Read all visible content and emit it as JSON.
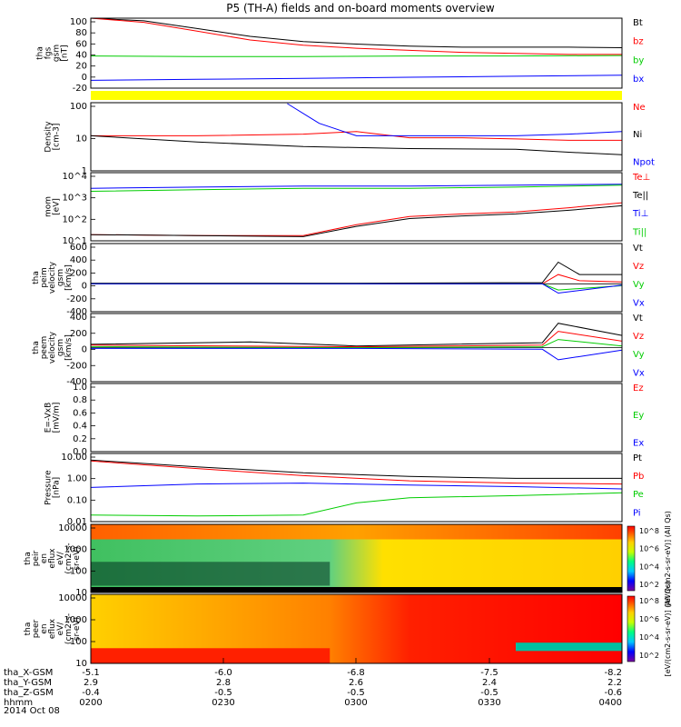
{
  "title": "P5 (TH-A) fields and on-board moments overview",
  "date": "2014 Oct 08",
  "colors": {
    "black": "#000000",
    "red": "#ff0000",
    "green": "#00cc00",
    "blue": "#0000ff",
    "yellow": "#ffff00"
  },
  "chart_data": [
    {
      "id": "fgs",
      "type": "line",
      "ylabel": [
        "tha",
        "fgs",
        "gsm",
        "[nT]"
      ],
      "yticks": [
        "100",
        "80",
        "60",
        "40",
        "20",
        "0",
        "-20"
      ],
      "ylim": [
        -35,
        100
      ],
      "series": [
        {
          "name": "Bt",
          "color": "#000000",
          "x": [
            0,
            0.1,
            0.2,
            0.3,
            0.4,
            0.5,
            0.6,
            0.7,
            0.8,
            0.9,
            1.0
          ],
          "y": [
            105,
            95,
            80,
            65,
            55,
            50,
            46,
            44,
            44,
            44,
            43
          ]
        },
        {
          "name": "bz",
          "color": "#ff0000",
          "x": [
            0,
            0.1,
            0.2,
            0.3,
            0.4,
            0.5,
            0.6,
            0.7,
            0.8,
            0.9,
            1.0
          ],
          "y": [
            103,
            92,
            75,
            58,
            48,
            42,
            38,
            34,
            32,
            30,
            30
          ]
        },
        {
          "name": "by",
          "color": "#00cc00",
          "x": [
            0,
            0.2,
            0.4,
            0.6,
            0.8,
            1.0
          ],
          "y": [
            27,
            26,
            26,
            27,
            27,
            28
          ]
        },
        {
          "name": "bx",
          "color": "#0000ff",
          "x": [
            0,
            0.2,
            0.4,
            0.6,
            0.8,
            1.0
          ],
          "y": [
            -20,
            -18,
            -16,
            -14,
            -12,
            -10
          ]
        }
      ]
    },
    {
      "id": "density",
      "type": "line",
      "ylabel": [
        "Density",
        "[cm-3]"
      ],
      "yticks": [
        "100",
        "10",
        "1"
      ],
      "log": true,
      "ylim": [
        0.1,
        200
      ],
      "series": [
        {
          "name": "Ne",
          "color": "#ff0000",
          "x": [
            0,
            0.2,
            0.4,
            0.5,
            0.6,
            0.7,
            0.8,
            0.9,
            1.0
          ],
          "y": [
            5,
            5,
            6,
            8,
            4,
            4,
            3.5,
            3,
            3
          ]
        },
        {
          "name": "Ni",
          "color": "#000000",
          "x": [
            0,
            0.2,
            0.4,
            0.6,
            0.8,
            0.9,
            1.0
          ],
          "y": [
            5,
            2.5,
            1.5,
            1.2,
            1.1,
            0.8,
            0.6
          ]
        },
        {
          "name": "Npot",
          "color": "#0000ff",
          "x": [
            0.37,
            0.43,
            0.5,
            0.6,
            0.8,
            0.9,
            1.0
          ],
          "y": [
            180,
            20,
            5,
            5,
            5,
            6,
            8
          ]
        }
      ]
    },
    {
      "id": "temp",
      "type": "line",
      "ylabel": [
        "mom",
        "[eV]"
      ],
      "yticks": [
        "10^4",
        "10^3",
        "10^2",
        "10^1"
      ],
      "log": true,
      "ylim": [
        10,
        20000
      ],
      "series": [
        {
          "name": "Te⊥",
          "color": "#ff0000",
          "x": [
            0,
            0.2,
            0.4,
            0.5,
            0.6,
            0.7,
            0.8,
            0.9,
            1.0
          ],
          "y": [
            20,
            18,
            18,
            60,
            150,
            200,
            250,
            400,
            700
          ]
        },
        {
          "name": "Te||",
          "color": "#000000",
          "x": [
            0,
            0.2,
            0.4,
            0.5,
            0.6,
            0.7,
            0.8,
            0.9,
            1.0
          ],
          "y": [
            20,
            18,
            16,
            50,
            120,
            160,
            200,
            300,
            500
          ]
        },
        {
          "name": "Ti⊥",
          "color": "#0000ff",
          "x": [
            0,
            0.2,
            0.4,
            0.6,
            0.8,
            1.0
          ],
          "y": [
            3500,
            4000,
            4500,
            4500,
            5000,
            5500
          ]
        },
        {
          "name": "Ti||",
          "color": "#00cc00",
          "x": [
            0,
            0.2,
            0.4,
            0.6,
            0.8,
            1.0
          ],
          "y": [
            2500,
            3000,
            3500,
            3500,
            4000,
            5000
          ]
        }
      ]
    },
    {
      "id": "peim",
      "type": "line",
      "ylabel": [
        "tha",
        "peim",
        "velocity",
        "gsm",
        "[km/s]"
      ],
      "yticks": [
        "600",
        "400",
        "200",
        "0",
        "-200",
        "-400"
      ],
      "ylim": [
        -450,
        650
      ],
      "series": [
        {
          "name": "Vt",
          "color": "#000000",
          "x": [
            0,
            0.5,
            0.85,
            0.88,
            0.92,
            1.0
          ],
          "y": [
            10,
            10,
            20,
            350,
            150,
            150
          ]
        },
        {
          "name": "Vz",
          "color": "#ff0000",
          "x": [
            0,
            0.5,
            0.85,
            0.88,
            0.92,
            1.0
          ],
          "y": [
            0,
            0,
            0,
            150,
            50,
            30
          ]
        },
        {
          "name": "Vy",
          "color": "#00cc00",
          "x": [
            0,
            0.5,
            0.85,
            0.88,
            1.0
          ],
          "y": [
            0,
            0,
            0,
            -100,
            -30
          ]
        },
        {
          "name": "Vx",
          "color": "#0000ff",
          "x": [
            0,
            0.5,
            0.85,
            0.88,
            1.0
          ],
          "y": [
            0,
            0,
            0,
            -150,
            -20
          ]
        }
      ]
    },
    {
      "id": "peem",
      "type": "line",
      "ylabel": [
        "tha",
        "peem",
        "velocity",
        "gsm",
        "[km/s]"
      ],
      "yticks": [
        "400",
        "200",
        "0",
        "-200",
        "-400"
      ],
      "ylim": [
        -420,
        420
      ],
      "series": [
        {
          "name": "Vt",
          "color": "#000000",
          "x": [
            0,
            0.3,
            0.5,
            0.85,
            0.88,
            1.0
          ],
          "y": [
            40,
            70,
            20,
            60,
            300,
            150
          ]
        },
        {
          "name": "Vz",
          "color": "#ff0000",
          "x": [
            0,
            0.5,
            0.85,
            0.88,
            1.0
          ],
          "y": [
            30,
            10,
            30,
            200,
            80
          ]
        },
        {
          "name": "Vy",
          "color": "#00cc00",
          "x": [
            0,
            0.5,
            0.85,
            0.88,
            1.0
          ],
          "y": [
            10,
            0,
            10,
            100,
            20
          ]
        },
        {
          "name": "Vx",
          "color": "#0000ff",
          "x": [
            0,
            0.5,
            0.85,
            0.88,
            1.0
          ],
          "y": [
            -10,
            -10,
            -20,
            -150,
            -30
          ]
        }
      ]
    },
    {
      "id": "efield",
      "type": "line",
      "ylabel": [
        "E=-VxB",
        "[mV/m]"
      ],
      "yticks": [
        "1.0",
        "0.8",
        "0.6",
        "0.4",
        "0.2",
        "0.0"
      ],
      "ylim": [
        0,
        1
      ],
      "series": [
        {
          "name": "Ez",
          "color": "#ff0000",
          "x": [],
          "y": []
        },
        {
          "name": "Ey",
          "color": "#00cc00",
          "x": [],
          "y": []
        },
        {
          "name": "Ex",
          "color": "#0000ff",
          "x": [],
          "y": []
        }
      ]
    },
    {
      "id": "pressure",
      "type": "line",
      "ylabel": [
        "Pressure",
        "[nPa]"
      ],
      "yticks": [
        "10.00",
        "1.00",
        "0.10",
        "0.01"
      ],
      "log": true,
      "ylim": [
        0.01,
        12
      ],
      "series": [
        {
          "name": "Pt",
          "color": "#000000",
          "x": [
            0,
            0.2,
            0.4,
            0.6,
            0.8,
            1.0
          ],
          "y": [
            6,
            3,
            1.6,
            1.1,
            0.9,
            0.9
          ]
        },
        {
          "name": "Pb",
          "color": "#ff0000",
          "x": [
            0,
            0.2,
            0.4,
            0.6,
            0.8,
            1.0
          ],
          "y": [
            5.5,
            2.5,
            1.2,
            0.7,
            0.55,
            0.5
          ]
        },
        {
          "name": "Pe",
          "color": "#00cc00",
          "x": [
            0,
            0.2,
            0.4,
            0.5,
            0.6,
            0.8,
            1.0
          ],
          "y": [
            0.02,
            0.018,
            0.02,
            0.07,
            0.12,
            0.15,
            0.2
          ]
        },
        {
          "name": "Pi",
          "color": "#0000ff",
          "x": [
            0,
            0.2,
            0.4,
            0.6,
            0.8,
            1.0
          ],
          "y": [
            0.35,
            0.5,
            0.55,
            0.45,
            0.38,
            0.3
          ]
        }
      ]
    },
    {
      "id": "peir",
      "type": "heatmap",
      "ylabel": [
        "tha",
        "peir",
        "en",
        "eflux",
        "eV/",
        "(cm2-s-",
        "sr-eV)"
      ],
      "yticks": [
        "10000",
        "1000",
        "100",
        "10"
      ],
      "colorbar_label": "[eV/(cm2-s-sr-eV)] (All Qs)",
      "colorbar_ticks": [
        "10^8",
        "10^6",
        "10^4",
        "10^2"
      ]
    },
    {
      "id": "peer",
      "type": "heatmap",
      "ylabel": [
        "tha",
        "peer",
        "en",
        "eflux",
        "eV/",
        "(cm2-s-",
        "sr-eV)"
      ],
      "yticks": [
        "10000",
        "1000",
        "100",
        "10"
      ],
      "colorbar_label": "[eV/(cm2-s-sr-eV)] (All Qs)",
      "colorbar_ticks": [
        "10^8",
        "10^6",
        "10^4",
        "10^2"
      ]
    }
  ],
  "xaxis": {
    "rows": [
      {
        "label": "tha_X-GSM",
        "values": [
          "-5.1",
          "-6.0",
          "-6.8",
          "-7.5",
          "-8.2"
        ]
      },
      {
        "label": "tha_Y-GSM",
        "values": [
          "2.9",
          "2.8",
          "2.6",
          "2.4",
          "2.2"
        ]
      },
      {
        "label": "tha_Z-GSM",
        "values": [
          "-0.4",
          "-0.5",
          "-0.5",
          "-0.5",
          "-0.6"
        ]
      },
      {
        "label": "hhmm",
        "values": [
          "0200",
          "0230",
          "0300",
          "0330",
          "0400"
        ]
      }
    ]
  }
}
